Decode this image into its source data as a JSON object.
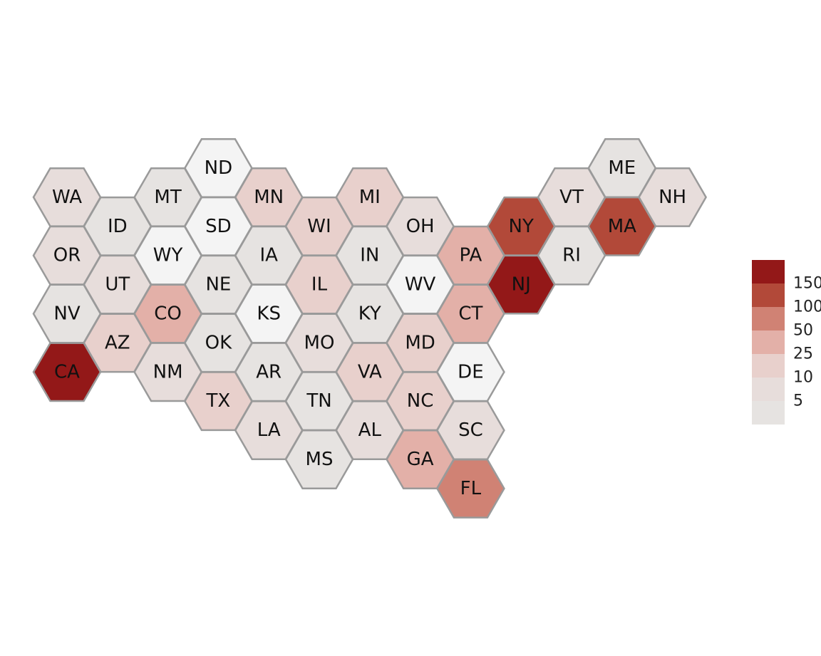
{
  "map": {
    "states": [
      {
        "abbr": "WA",
        "col": 0,
        "row": 1,
        "bin": 1
      },
      {
        "abbr": "OR",
        "col": 0,
        "row": 3,
        "bin": 1
      },
      {
        "abbr": "NV",
        "col": 0,
        "row": 5,
        "bin": 0
      },
      {
        "abbr": "CA",
        "col": 0,
        "row": 7,
        "bin": 6
      },
      {
        "abbr": "ID",
        "col": 1,
        "row": 2,
        "bin": 0
      },
      {
        "abbr": "UT",
        "col": 1,
        "row": 4,
        "bin": 1
      },
      {
        "abbr": "AZ",
        "col": 1,
        "row": 6,
        "bin": 2
      },
      {
        "abbr": "MT",
        "col": 2,
        "row": 1,
        "bin": 0
      },
      {
        "abbr": "WY",
        "col": 2,
        "row": 3,
        "bin": -1
      },
      {
        "abbr": "CO",
        "col": 2,
        "row": 5,
        "bin": 3
      },
      {
        "abbr": "NM",
        "col": 2,
        "row": 7,
        "bin": 1
      },
      {
        "abbr": "ND",
        "col": 3,
        "row": 0,
        "bin": -1
      },
      {
        "abbr": "SD",
        "col": 3,
        "row": 2,
        "bin": -1
      },
      {
        "abbr": "NE",
        "col": 3,
        "row": 4,
        "bin": 0
      },
      {
        "abbr": "OK",
        "col": 3,
        "row": 6,
        "bin": 0
      },
      {
        "abbr": "TX",
        "col": 3,
        "row": 8,
        "bin": 2
      },
      {
        "abbr": "MN",
        "col": 4,
        "row": 1,
        "bin": 2
      },
      {
        "abbr": "IA",
        "col": 4,
        "row": 3,
        "bin": 0
      },
      {
        "abbr": "KS",
        "col": 4,
        "row": 5,
        "bin": -1
      },
      {
        "abbr": "AR",
        "col": 4,
        "row": 7,
        "bin": 0
      },
      {
        "abbr": "LA",
        "col": 4,
        "row": 9,
        "bin": 1
      },
      {
        "abbr": "WI",
        "col": 5,
        "row": 2,
        "bin": 2
      },
      {
        "abbr": "IL",
        "col": 5,
        "row": 4,
        "bin": 2
      },
      {
        "abbr": "MO",
        "col": 5,
        "row": 6,
        "bin": 1
      },
      {
        "abbr": "TN",
        "col": 5,
        "row": 8,
        "bin": 0
      },
      {
        "abbr": "MS",
        "col": 5,
        "row": 10,
        "bin": 0
      },
      {
        "abbr": "MI",
        "col": 6,
        "row": 1,
        "bin": 2
      },
      {
        "abbr": "IN",
        "col": 6,
        "row": 3,
        "bin": 0
      },
      {
        "abbr": "KY",
        "col": 6,
        "row": 5,
        "bin": 0
      },
      {
        "abbr": "VA",
        "col": 6,
        "row": 7,
        "bin": 2
      },
      {
        "abbr": "AL",
        "col": 6,
        "row": 9,
        "bin": 1
      },
      {
        "abbr": "OH",
        "col": 7,
        "row": 2,
        "bin": 1
      },
      {
        "abbr": "WV",
        "col": 7,
        "row": 4,
        "bin": -1
      },
      {
        "abbr": "MD",
        "col": 7,
        "row": 6,
        "bin": 2
      },
      {
        "abbr": "NC",
        "col": 7,
        "row": 8,
        "bin": 2
      },
      {
        "abbr": "GA",
        "col": 7,
        "row": 10,
        "bin": 3
      },
      {
        "abbr": "PA",
        "col": 8,
        "row": 3,
        "bin": 3
      },
      {
        "abbr": "CT",
        "col": 8,
        "row": 5,
        "bin": 3
      },
      {
        "abbr": "DE",
        "col": 8,
        "row": 7,
        "bin": -1
      },
      {
        "abbr": "SC",
        "col": 8,
        "row": 9,
        "bin": 1
      },
      {
        "abbr": "FL",
        "col": 8,
        "row": 11,
        "bin": 4
      },
      {
        "abbr": "NY",
        "col": 9,
        "row": 2,
        "bin": 5
      },
      {
        "abbr": "NJ",
        "col": 9,
        "row": 4,
        "bin": 6
      },
      {
        "abbr": "VT",
        "col": 10,
        "row": 1,
        "bin": 1
      },
      {
        "abbr": "RI",
        "col": 10,
        "row": 3,
        "bin": 0
      },
      {
        "abbr": "ME",
        "col": 11,
        "row": 0,
        "bin": 0
      },
      {
        "abbr": "MA",
        "col": 11,
        "row": 2,
        "bin": 5
      },
      {
        "abbr": "NH",
        "col": 12,
        "row": 1,
        "bin": 1
      }
    ]
  },
  "legend": {
    "bin_colors": [
      "#e6e3e1",
      "#e7dddb",
      "#e8d0cc",
      "#e3b0a8",
      "#d08274",
      "#b24939",
      "#931818"
    ],
    "extra_color": "#f4f4f4",
    "labels": [
      "5",
      "10",
      "25",
      "50",
      "100",
      "150"
    ]
  }
}
